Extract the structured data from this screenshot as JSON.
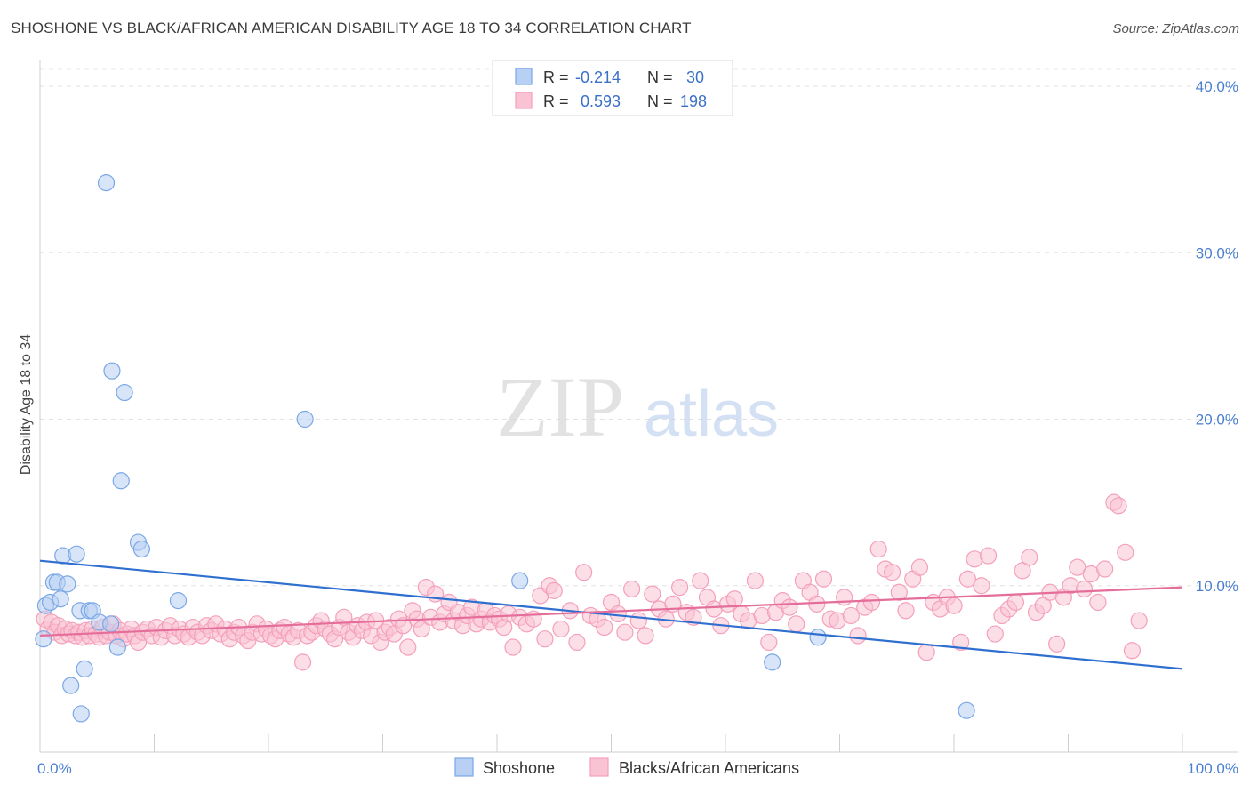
{
  "title": "SHOSHONE VS BLACK/AFRICAN AMERICAN DISABILITY AGE 18 TO 34 CORRELATION CHART",
  "source": "Source: ZipAtlas.com",
  "watermark": {
    "zip": "ZIP",
    "atlas": "atlas"
  },
  "chart_data": {
    "type": "scatter",
    "ylabel": "Disability Age 18 to 34",
    "xlim": [
      0,
      100
    ],
    "ylim": [
      0,
      40
    ],
    "x_tick_labels": {
      "min": "0.0%",
      "max": "100.0%"
    },
    "y_ticks": [
      {
        "value": 10,
        "label": "10.0%"
      },
      {
        "value": 20,
        "label": "20.0%"
      },
      {
        "value": 30,
        "label": "30.0%"
      },
      {
        "value": 40,
        "label": "40.0%"
      }
    ],
    "legend": {
      "r_label": "R =",
      "n_label": "N =",
      "entries": [
        {
          "r": "-0.214",
          "n": "30"
        },
        {
          "r": "0.593",
          "n": "198"
        }
      ]
    },
    "series": [
      {
        "name": "Shoshone",
        "color": "#7aa7e6",
        "line_color": "#2f6fd0",
        "trend": [
          [
            0,
            11.5
          ],
          [
            100,
            5.0
          ]
        ],
        "points": [
          [
            0.3,
            6.8
          ],
          [
            0.5,
            8.8
          ],
          [
            0.9,
            9.0
          ],
          [
            1.2,
            10.2
          ],
          [
            1.5,
            10.2
          ],
          [
            1.8,
            9.2
          ],
          [
            2.0,
            11.8
          ],
          [
            2.4,
            10.1
          ],
          [
            2.7,
            4.0
          ],
          [
            3.2,
            11.9
          ],
          [
            3.5,
            8.5
          ],
          [
            3.6,
            2.3
          ],
          [
            3.9,
            5.0
          ],
          [
            4.3,
            8.5
          ],
          [
            4.6,
            8.5
          ],
          [
            5.2,
            7.8
          ],
          [
            5.8,
            34.2
          ],
          [
            6.2,
            7.7
          ],
          [
            6.3,
            22.9
          ],
          [
            6.8,
            6.3
          ],
          [
            7.1,
            16.3
          ],
          [
            7.4,
            21.6
          ],
          [
            8.6,
            12.6
          ],
          [
            8.9,
            12.2
          ],
          [
            12.1,
            9.1
          ],
          [
            23.2,
            20.0
          ],
          [
            42.0,
            10.3
          ],
          [
            64.1,
            5.4
          ],
          [
            68.1,
            6.9
          ],
          [
            81.1,
            2.5
          ]
        ]
      },
      {
        "name": "Blacks/African Americans",
        "color": "#f4a0bb",
        "line_color": "#e46e99",
        "trend": [
          [
            0,
            7.0
          ],
          [
            100,
            9.9
          ]
        ],
        "points": [
          [
            0.4,
            8.0
          ],
          [
            0.7,
            7.4
          ],
          [
            1.0,
            7.8
          ],
          [
            1.3,
            7.2
          ],
          [
            1.6,
            7.6
          ],
          [
            1.9,
            7.0
          ],
          [
            2.2,
            7.4
          ],
          [
            2.5,
            7.1
          ],
          [
            2.8,
            7.3
          ],
          [
            3.1,
            7.0
          ],
          [
            3.4,
            7.2
          ],
          [
            3.7,
            6.9
          ],
          [
            4.0,
            7.3
          ],
          [
            4.3,
            7.0
          ],
          [
            4.6,
            7.4
          ],
          [
            4.9,
            7.1
          ],
          [
            5.2,
            6.9
          ],
          [
            5.5,
            7.5
          ],
          [
            5.8,
            7.0
          ],
          [
            6.1,
            7.2
          ],
          [
            6.4,
            7.7
          ],
          [
            6.7,
            7.0
          ],
          [
            7.0,
            7.3
          ],
          [
            7.3,
            6.8
          ],
          [
            7.6,
            7.1
          ],
          [
            8.0,
            7.4
          ],
          [
            8.3,
            7.0
          ],
          [
            8.6,
            6.6
          ],
          [
            9.0,
            7.2
          ],
          [
            9.4,
            7.4
          ],
          [
            9.8,
            7.0
          ],
          [
            10.2,
            7.5
          ],
          [
            10.6,
            6.9
          ],
          [
            11.0,
            7.3
          ],
          [
            11.4,
            7.6
          ],
          [
            11.8,
            7.0
          ],
          [
            12.2,
            7.4
          ],
          [
            12.6,
            7.1
          ],
          [
            13.0,
            6.9
          ],
          [
            13.4,
            7.5
          ],
          [
            13.8,
            7.2
          ],
          [
            14.2,
            7.0
          ],
          [
            14.6,
            7.6
          ],
          [
            15.0,
            7.3
          ],
          [
            15.4,
            7.7
          ],
          [
            15.8,
            7.1
          ],
          [
            16.2,
            7.4
          ],
          [
            16.6,
            6.8
          ],
          [
            17.0,
            7.2
          ],
          [
            17.4,
            7.5
          ],
          [
            17.8,
            7.0
          ],
          [
            18.2,
            6.7
          ],
          [
            18.6,
            7.2
          ],
          [
            19.0,
            7.7
          ],
          [
            19.4,
            7.1
          ],
          [
            19.8,
            7.4
          ],
          [
            20.2,
            7.0
          ],
          [
            20.6,
            6.8
          ],
          [
            21.0,
            7.3
          ],
          [
            21.4,
            7.5
          ],
          [
            21.8,
            7.1
          ],
          [
            22.2,
            6.9
          ],
          [
            22.6,
            7.3
          ],
          [
            23.0,
            5.4
          ],
          [
            23.4,
            7.0
          ],
          [
            23.8,
            7.2
          ],
          [
            24.2,
            7.6
          ],
          [
            24.6,
            7.9
          ],
          [
            25.0,
            7.4
          ],
          [
            25.4,
            7.1
          ],
          [
            25.8,
            6.8
          ],
          [
            26.2,
            7.5
          ],
          [
            26.6,
            8.1
          ],
          [
            27.0,
            7.2
          ],
          [
            27.4,
            6.9
          ],
          [
            27.8,
            7.6
          ],
          [
            28.2,
            7.3
          ],
          [
            28.6,
            7.8
          ],
          [
            29.0,
            7.0
          ],
          [
            29.4,
            7.9
          ],
          [
            29.8,
            6.6
          ],
          [
            30.2,
            7.2
          ],
          [
            30.6,
            7.5
          ],
          [
            31.0,
            7.1
          ],
          [
            31.4,
            8.0
          ],
          [
            31.8,
            7.6
          ],
          [
            32.2,
            6.3
          ],
          [
            32.6,
            8.5
          ],
          [
            33.0,
            8.0
          ],
          [
            33.4,
            7.4
          ],
          [
            33.8,
            9.9
          ],
          [
            34.2,
            8.1
          ],
          [
            34.6,
            9.5
          ],
          [
            35.0,
            7.8
          ],
          [
            35.4,
            8.3
          ],
          [
            35.8,
            9.0
          ],
          [
            36.2,
            7.9
          ],
          [
            36.6,
            8.4
          ],
          [
            37.0,
            7.6
          ],
          [
            37.4,
            8.2
          ],
          [
            37.8,
            8.7
          ],
          [
            38.2,
            7.7
          ],
          [
            38.6,
            8.0
          ],
          [
            39.0,
            8.5
          ],
          [
            39.4,
            7.8
          ],
          [
            39.8,
            8.2
          ],
          [
            40.2,
            8.0
          ],
          [
            40.6,
            7.5
          ],
          [
            41.0,
            8.3
          ],
          [
            41.4,
            6.3
          ],
          [
            42.0,
            8.1
          ],
          [
            42.6,
            7.7
          ],
          [
            43.2,
            8.0
          ],
          [
            43.8,
            9.4
          ],
          [
            44.2,
            6.8
          ],
          [
            44.6,
            10.0
          ],
          [
            45.0,
            9.7
          ],
          [
            45.6,
            7.4
          ],
          [
            46.4,
            8.5
          ],
          [
            47.0,
            6.6
          ],
          [
            47.6,
            10.8
          ],
          [
            48.2,
            8.2
          ],
          [
            48.8,
            8.0
          ],
          [
            49.4,
            7.5
          ],
          [
            50.0,
            9.0
          ],
          [
            50.6,
            8.3
          ],
          [
            51.2,
            7.2
          ],
          [
            51.8,
            9.8
          ],
          [
            52.4,
            7.9
          ],
          [
            53.0,
            7.0
          ],
          [
            53.6,
            9.5
          ],
          [
            54.2,
            8.6
          ],
          [
            54.8,
            8.0
          ],
          [
            55.4,
            8.9
          ],
          [
            56.0,
            9.9
          ],
          [
            56.6,
            8.4
          ],
          [
            57.2,
            8.1
          ],
          [
            57.8,
            10.3
          ],
          [
            58.4,
            9.3
          ],
          [
            59.0,
            8.6
          ],
          [
            59.6,
            7.6
          ],
          [
            60.2,
            8.9
          ],
          [
            60.8,
            9.2
          ],
          [
            61.4,
            8.3
          ],
          [
            62.0,
            7.9
          ],
          [
            62.6,
            10.3
          ],
          [
            63.2,
            8.2
          ],
          [
            63.8,
            6.6
          ],
          [
            64.4,
            8.4
          ],
          [
            65.0,
            9.1
          ],
          [
            65.6,
            8.7
          ],
          [
            66.2,
            7.7
          ],
          [
            66.8,
            10.3
          ],
          [
            67.4,
            9.6
          ],
          [
            68.0,
            8.9
          ],
          [
            68.6,
            10.4
          ],
          [
            69.2,
            8.0
          ],
          [
            69.8,
            7.9
          ],
          [
            70.4,
            9.3
          ],
          [
            71.0,
            8.2
          ],
          [
            71.6,
            7.0
          ],
          [
            72.2,
            8.7
          ],
          [
            72.8,
            9.0
          ],
          [
            73.4,
            12.2
          ],
          [
            74.0,
            11.0
          ],
          [
            74.6,
            10.8
          ],
          [
            75.2,
            9.6
          ],
          [
            75.8,
            8.5
          ],
          [
            76.4,
            10.4
          ],
          [
            77.0,
            11.1
          ],
          [
            77.6,
            6.0
          ],
          [
            78.2,
            9.0
          ],
          [
            78.8,
            8.6
          ],
          [
            79.4,
            9.3
          ],
          [
            80.0,
            8.8
          ],
          [
            80.6,
            6.6
          ],
          [
            81.2,
            10.4
          ],
          [
            81.8,
            11.6
          ],
          [
            82.4,
            10.0
          ],
          [
            83.0,
            11.8
          ],
          [
            83.6,
            7.1
          ],
          [
            84.2,
            8.2
          ],
          [
            84.8,
            8.6
          ],
          [
            85.4,
            9.0
          ],
          [
            86.0,
            10.9
          ],
          [
            86.6,
            11.7
          ],
          [
            87.2,
            8.4
          ],
          [
            87.8,
            8.8
          ],
          [
            88.4,
            9.6
          ],
          [
            89.0,
            6.5
          ],
          [
            89.6,
            9.3
          ],
          [
            90.2,
            10.0
          ],
          [
            90.8,
            11.1
          ],
          [
            91.4,
            9.8
          ],
          [
            92.0,
            10.7
          ],
          [
            92.6,
            9.0
          ],
          [
            93.2,
            11.0
          ],
          [
            94.0,
            15.0
          ],
          [
            94.4,
            14.8
          ],
          [
            95.0,
            12.0
          ],
          [
            95.6,
            6.1
          ],
          [
            96.2,
            7.9
          ]
        ]
      }
    ]
  }
}
